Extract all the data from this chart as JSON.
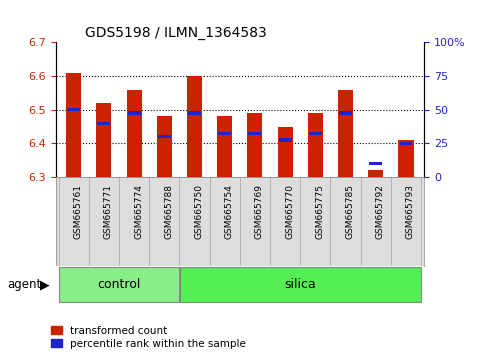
{
  "title": "GDS5198 / ILMN_1364583",
  "samples": [
    "GSM665761",
    "GSM665771",
    "GSM665774",
    "GSM665788",
    "GSM665750",
    "GSM665754",
    "GSM665769",
    "GSM665770",
    "GSM665775",
    "GSM665785",
    "GSM665792",
    "GSM665793"
  ],
  "groups": [
    "control",
    "control",
    "control",
    "control",
    "silica",
    "silica",
    "silica",
    "silica",
    "silica",
    "silica",
    "silica",
    "silica"
  ],
  "red_values": [
    6.61,
    6.52,
    6.56,
    6.48,
    6.6,
    6.48,
    6.49,
    6.45,
    6.49,
    6.56,
    6.32,
    6.41
  ],
  "blue_values": [
    6.5,
    6.46,
    6.49,
    6.42,
    6.49,
    6.43,
    6.43,
    6.41,
    6.43,
    6.49,
    6.34,
    6.4
  ],
  "ymin": 6.3,
  "ymax": 6.7,
  "yticks_left": [
    6.3,
    6.4,
    6.5,
    6.6,
    6.7
  ],
  "yticks_right": [
    0,
    25,
    50,
    75,
    100
  ],
  "bar_width": 0.5,
  "red_color": "#cc2200",
  "blue_color": "#2222cc",
  "control_color": "#88ee88",
  "silica_color": "#55ee55",
  "legend_red": "transformed count",
  "legend_blue": "percentile rank within the sample",
  "bg_color": "#ffffff",
  "tick_color_left": "#cc2200",
  "tick_color_right": "#2222cc",
  "grid_yticks": [
    6.4,
    6.5,
    6.6
  ],
  "n_control": 4,
  "n_silica": 8
}
